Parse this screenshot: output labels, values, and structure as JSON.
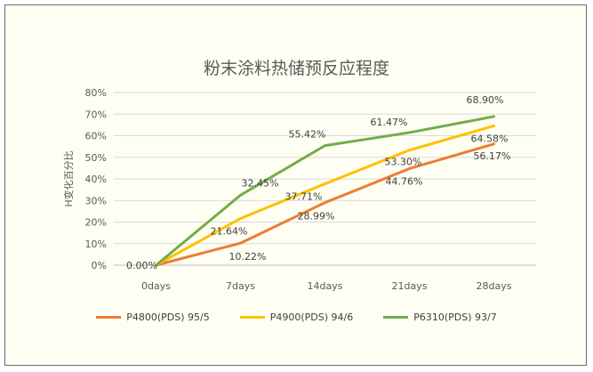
{
  "chart_data": {
    "type": "line",
    "title": "粉末涂料热储预反应程度",
    "ylabel": "H变化百分比",
    "xlabel": "",
    "categories": [
      "0days",
      "7days",
      "14days",
      "21days",
      "28days"
    ],
    "ylim": [
      0,
      80
    ],
    "yticks": [
      "0%",
      "10%",
      "20%",
      "30%",
      "40%",
      "50%",
      "60%",
      "70%",
      "80%"
    ],
    "grid": true,
    "legend_position": "bottom",
    "series": [
      {
        "name": "P4800(PDS) 95/5",
        "color": "#ed7d31",
        "values": [
          0.0,
          10.22,
          28.99,
          44.76,
          56.17
        ],
        "labels": [
          "0.00%",
          "10.22%",
          "28.99%",
          "44.76%",
          "56.17%"
        ]
      },
      {
        "name": "P4900(PDS) 94/6",
        "color": "#ffc000",
        "values": [
          0.0,
          21.64,
          37.71,
          53.3,
          64.58
        ],
        "labels": [
          "",
          "21.64%",
          "37.71%",
          "53.30%",
          "64.58%"
        ]
      },
      {
        "name": "P6310(PDS) 93/7",
        "color": "#70ad47",
        "values": [
          0.0,
          32.45,
          55.42,
          61.47,
          68.9
        ],
        "labels": [
          "",
          "32.45%",
          "55.42%",
          "61.47%",
          "68.90%"
        ]
      }
    ]
  }
}
